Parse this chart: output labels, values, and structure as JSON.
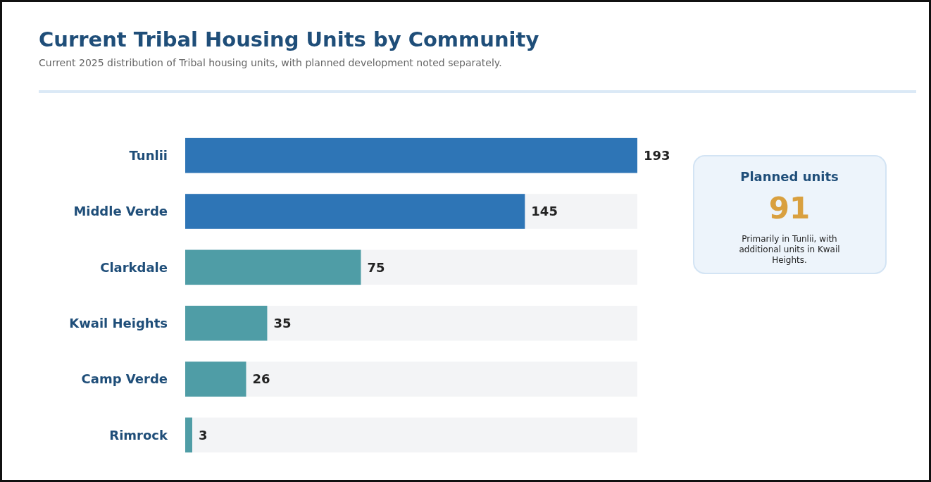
{
  "chart_data": {
    "type": "bar",
    "orientation": "horizontal",
    "title": "Current Tribal Housing Units by Community",
    "subtitle": "Current 2025 distribution of Tribal housing units, with planned development noted separately.",
    "categories": [
      "Tunlii",
      "Middle Verde",
      "Clarkdale",
      "Kwail Heights",
      "Camp Verde",
      "Rimrock"
    ],
    "values": [
      193,
      145,
      75,
      35,
      26,
      3
    ],
    "colors": [
      "#2e75b6",
      "#2e75b6",
      "#4f9da6",
      "#4f9da6",
      "#4f9da6",
      "#4f9da6"
    ],
    "data_labels": true,
    "annotations": [
      "Planned units",
      "91",
      "Primarily in Tunlii, with additional units in Kwail Heights."
    ]
  }
}
